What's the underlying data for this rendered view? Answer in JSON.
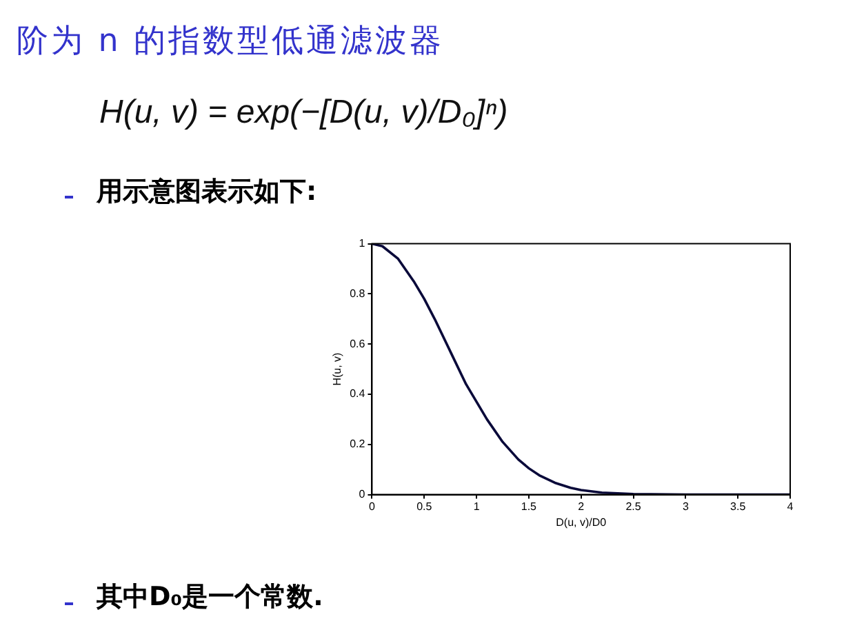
{
  "chart_data": {
    "type": "line",
    "title": "阶为 n 的指数型低通滤波器",
    "subtitle": "H(u, v) = exp(−[D(u, v)/D₀]ⁿ)",
    "xlabel": "D(u, v)/D0",
    "ylabel": "H(u, v)",
    "annotations": [
      "用示意图表示如下:",
      "其中D₀是一个常数."
    ],
    "x": [
      0,
      0.1,
      0.25,
      0.4,
      0.5,
      0.6,
      0.75,
      0.9,
      1,
      1.1,
      1.25,
      1.4,
      1.5,
      1.6,
      1.75,
      1.9,
      2,
      2.2,
      2.5,
      3,
      3.5,
      4
    ],
    "series": [
      {
        "color": "#0a0a3a",
        "values": [
          1,
          0.99,
          0.94,
          0.85,
          0.78,
          0.7,
          0.57,
          0.44,
          0.37,
          0.3,
          0.21,
          0.14,
          0.105,
          0.077,
          0.047,
          0.027,
          0.018,
          0.008,
          0.002,
          0,
          0,
          0
        ]
      }
    ],
    "xlim": [
      0,
      4
    ],
    "xticks": [
      0,
      0.5,
      1,
      1.5,
      2,
      2.5,
      3,
      3.5,
      4
    ],
    "ylim": [
      0,
      1
    ],
    "yticks": [
      0,
      0.2,
      0.4,
      0.6,
      0.8,
      1
    ],
    "grid": false,
    "legend": false,
    "marker": "none",
    "line_style": "solid"
  }
}
